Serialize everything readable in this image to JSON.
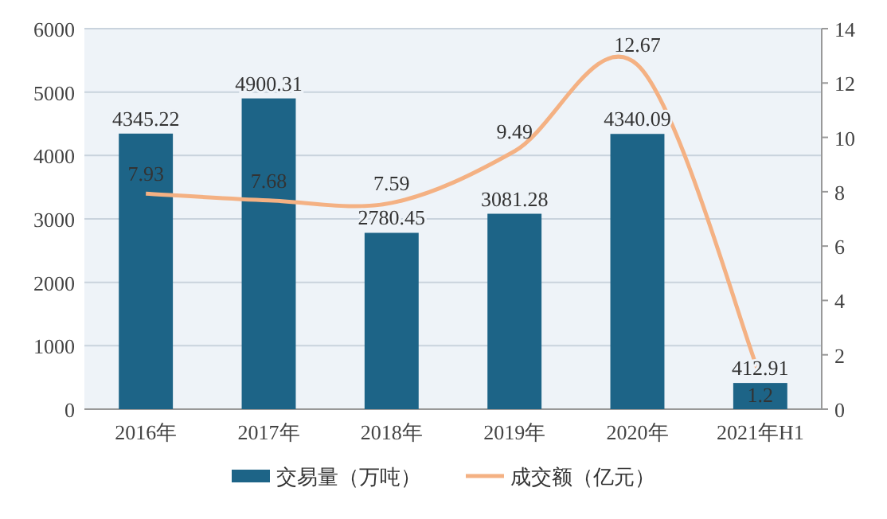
{
  "chart_data": {
    "type": "bar",
    "categories": [
      "2016年",
      "2017年",
      "2018年",
      "2019年",
      "2020年",
      "2021年H1"
    ],
    "series": [
      {
        "name": "交易量（万吨）",
        "color": "#1d6487",
        "values": [
          4345.22,
          4900.31,
          2780.45,
          3081.28,
          4340.09,
          412.91
        ]
      },
      {
        "name": "成交额（亿元）",
        "type": "line",
        "axis": "y2",
        "color": "#f4b183",
        "values": [
          7.93,
          7.68,
          7.59,
          9.49,
          12.67,
          1.2
        ]
      }
    ],
    "ylim": [
      0,
      6000
    ],
    "yticks": [
      0,
      1000,
      2000,
      3000,
      4000,
      5000,
      6000
    ],
    "y2lim": [
      0,
      14
    ],
    "y2ticks": [
      0,
      2,
      4,
      6,
      8,
      10,
      12,
      14
    ],
    "grid": "y",
    "legend": "bottom",
    "data_labels": true
  }
}
